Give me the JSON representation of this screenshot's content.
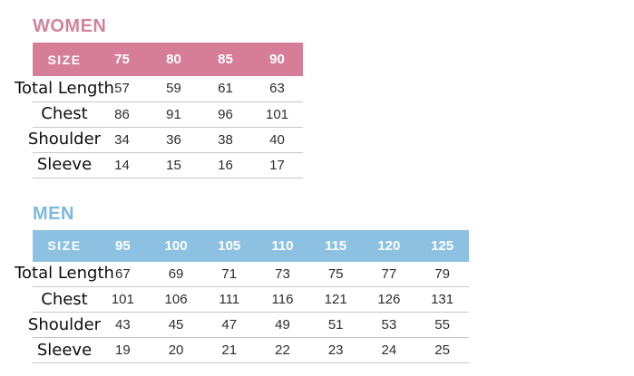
{
  "page": {
    "background": "#ffffff"
  },
  "chart_data": [
    {
      "type": "table",
      "id": "women",
      "title": "WOMEN",
      "accent_color": "#d67e97",
      "title_color": "#d3849c",
      "columns": [
        "SIZE",
        "75",
        "80",
        "85",
        "90"
      ],
      "rows": [
        [
          "Total Length",
          57,
          59,
          61,
          63
        ],
        [
          "Chest",
          86,
          91,
          96,
          101
        ],
        [
          "Shoulder",
          34,
          36,
          38,
          40
        ],
        [
          "Sleeve",
          14,
          15,
          16,
          17
        ]
      ],
      "divider_color": "#c7c7c7",
      "header_text_color": "#ffffff",
      "value_text_color": "#2d2d2d"
    },
    {
      "type": "table",
      "id": "men",
      "title": "MEN",
      "accent_color": "#8dc1e2",
      "title_color": "#7db9de",
      "columns": [
        "SIZE",
        "95",
        "100",
        "105",
        "110",
        "115",
        "120",
        "125"
      ],
      "rows": [
        [
          "Total Length",
          67,
          69,
          71,
          73,
          75,
          77,
          79
        ],
        [
          "Chest",
          101,
          106,
          111,
          116,
          121,
          126,
          131
        ],
        [
          "Shoulder",
          43,
          45,
          47,
          49,
          51,
          53,
          55
        ],
        [
          "Sleeve",
          19,
          20,
          21,
          22,
          23,
          24,
          25
        ]
      ],
      "divider_color": "#c7c7c7",
      "header_text_color": "#ffffff",
      "value_text_color": "#2d2d2d"
    }
  ]
}
